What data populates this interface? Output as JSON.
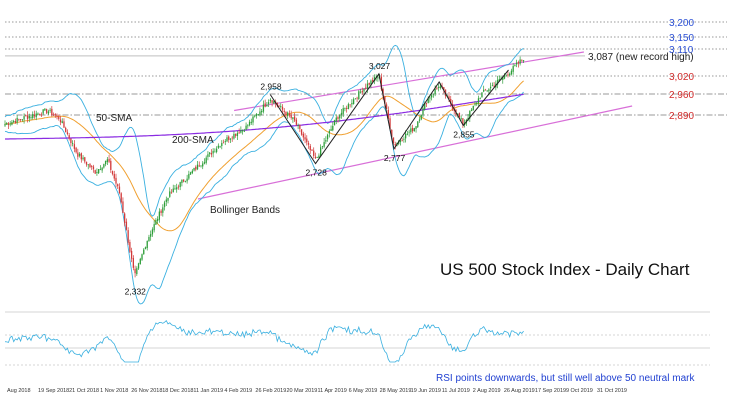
{
  "chart_data": {
    "type": "candlestick",
    "title": "US 500 Stock Index - Daily Chart",
    "ylim": [
      2300,
      3230
    ],
    "resistance_levels": [
      {
        "label": "3,200",
        "value": 3200,
        "color": "#2a4fd6",
        "style": "dotted"
      },
      {
        "label": "3,150",
        "value": 3150,
        "color": "#2a4fd6",
        "style": "dotted"
      },
      {
        "label": "3,110",
        "value": 3110,
        "color": "#2a4fd6",
        "style": "dotted"
      },
      {
        "label": "3,020",
        "value": 3020,
        "color": "#d22b2b",
        "style": "dotted"
      },
      {
        "label": "2,960",
        "value": 2960,
        "color": "#d22b2b",
        "style": "dashdot"
      },
      {
        "label": "2,890",
        "value": 2890,
        "color": "#d22b2b",
        "style": "dashdot"
      }
    ],
    "record_level": {
      "label": "3,087 (new record high)",
      "value": 3087,
      "color": "#444444"
    },
    "pivot_labels": [
      {
        "label": "2,958",
        "x": 0.44,
        "value": 2958
      },
      {
        "label": "3,027",
        "x": 0.62,
        "value": 3027
      },
      {
        "label": "2,728",
        "x": 0.515,
        "value": 2728
      },
      {
        "label": "2,777",
        "x": 0.645,
        "value": 2777
      },
      {
        "label": "2,855",
        "x": 0.76,
        "value": 2855
      },
      {
        "label": "2,332",
        "x": 0.215,
        "value": 2332
      }
    ],
    "indicators": [
      {
        "label": "50-SMA",
        "color": "#f0a030"
      },
      {
        "label": "200-SMA",
        "color": "#8a2be2"
      },
      {
        "label": "Bollinger Bands",
        "color": "#3ab0e0"
      }
    ],
    "x_ticks": [
      "Aug 2018",
      "19 Sep 2018",
      "21 Oct 2018",
      "1 Nov 2018",
      "26 Nov 2018",
      "18 Dec 2018",
      "11 Jan 2019",
      "4 Feb 2019",
      "26 Feb 2019",
      "20 Mar 2019",
      "11 Apr 2019",
      "6 May 2019",
      "28 May 2019",
      "19 Jun 2019",
      "11 Jul 2019",
      "2 Aug 2019",
      "26 Aug 2019",
      "17 Sep 2019",
      "9 Oct 2019",
      "31 Oct 2019"
    ],
    "rsi_note": "RSI points downwards, but still well above 50 neutral mark",
    "colors": {
      "up": "#2e9e3a",
      "down": "#d23a3a",
      "channel": "#d86fd8"
    }
  }
}
